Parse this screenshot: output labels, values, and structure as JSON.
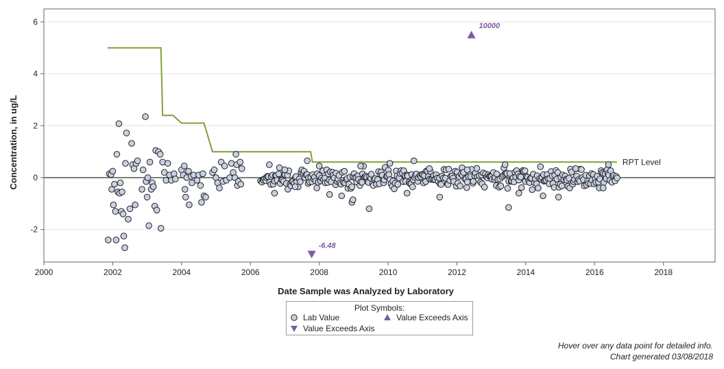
{
  "chart_data": {
    "type": "scatter",
    "title": "",
    "xlabel": "Date Sample was Analyzed by Laboratory",
    "ylabel": "Concentration, in ug/L",
    "xlim": [
      2000,
      2019.5
    ],
    "ylim": [
      -3.25,
      6.5
    ],
    "x_ticks": [
      2000,
      2002,
      2004,
      2006,
      2008,
      2010,
      2012,
      2014,
      2016,
      2018
    ],
    "y_ticks": [
      -2,
      0,
      2,
      4,
      6
    ],
    "grid": "horizontal",
    "reference_line_y": 0,
    "rpt_level": {
      "label": "RPT Level",
      "x": [
        2001.85,
        2003.4,
        2003.45,
        2003.75,
        2004.0,
        2004.65,
        2004.9,
        2007.75,
        2007.8,
        2016.65
      ],
      "y": [
        5.0,
        5.0,
        2.4,
        2.4,
        2.1,
        2.1,
        1.0,
        1.0,
        0.6,
        0.6
      ]
    },
    "exceeds_axis": [
      {
        "x": 2012.42,
        "y": 10000,
        "direction": "up",
        "label": "10000"
      },
      {
        "x": 2007.78,
        "y": -6.48,
        "direction": "down",
        "label": "-6.48"
      }
    ],
    "early_points": [
      [
        2001.87,
        -2.4
      ],
      [
        2001.9,
        0.15
      ],
      [
        2001.95,
        0.12
      ],
      [
        2001.97,
        -0.45
      ],
      [
        2002.0,
        0.25
      ],
      [
        2002.02,
        -1.05
      ],
      [
        2002.05,
        -0.25
      ],
      [
        2002.08,
        -1.3
      ],
      [
        2002.1,
        -2.4
      ],
      [
        2002.12,
        0.9
      ],
      [
        2002.15,
        -0.55
      ],
      [
        2002.18,
        2.08
      ],
      [
        2002.2,
        -0.6
      ],
      [
        2002.22,
        -0.2
      ],
      [
        2002.25,
        -1.3
      ],
      [
        2002.27,
        -0.55
      ],
      [
        2002.3,
        -1.4
      ],
      [
        2002.32,
        -2.25
      ],
      [
        2002.35,
        -2.7
      ],
      [
        2002.37,
        0.55
      ],
      [
        2002.4,
        1.72
      ],
      [
        2002.45,
        -1.6
      ],
      [
        2002.5,
        -1.2
      ],
      [
        2002.55,
        1.32
      ],
      [
        2002.58,
        0.5
      ],
      [
        2002.62,
        0.35
      ],
      [
        2002.65,
        -1.05
      ],
      [
        2002.68,
        0.55
      ],
      [
        2002.72,
        0.65
      ],
      [
        2002.85,
        -0.45
      ],
      [
        2002.88,
        0.3
      ],
      [
        2002.95,
        2.35
      ],
      [
        2002.97,
        -0.15
      ],
      [
        2003.0,
        -0.75
      ],
      [
        2003.02,
        0.0
      ],
      [
        2003.05,
        -1.85
      ],
      [
        2003.08,
        0.6
      ],
      [
        2003.12,
        -0.45
      ],
      [
        2003.15,
        -0.2
      ],
      [
        2003.18,
        -0.35
      ],
      [
        2003.22,
        -1.1
      ],
      [
        2003.25,
        1.05
      ],
      [
        2003.28,
        -1.25
      ],
      [
        2003.33,
        1.0
      ],
      [
        2003.38,
        0.9
      ],
      [
        2003.4,
        -1.95
      ],
      [
        2003.45,
        0.6
      ],
      [
        2003.5,
        0.2
      ],
      [
        2003.55,
        -0.1
      ],
      [
        2003.6,
        0.55
      ],
      [
        2003.65,
        0.1
      ],
      [
        2003.7,
        -0.1
      ],
      [
        2003.78,
        0.15
      ],
      [
        2003.82,
        -0.05
      ],
      [
        2004.0,
        0.3
      ],
      [
        2004.05,
        0.1
      ],
      [
        2004.08,
        0.45
      ],
      [
        2004.1,
        -0.45
      ],
      [
        2004.12,
        -0.75
      ],
      [
        2004.15,
        0.0
      ],
      [
        2004.2,
        0.25
      ],
      [
        2004.22,
        -1.05
      ],
      [
        2004.28,
        0.05
      ],
      [
        2004.3,
        -0.2
      ],
      [
        2004.35,
        0.1
      ],
      [
        2004.45,
        -0.1
      ],
      [
        2004.5,
        0.1
      ],
      [
        2004.55,
        -0.3
      ],
      [
        2004.58,
        -0.95
      ],
      [
        2004.62,
        0.15
      ],
      [
        2004.65,
        -0.7
      ],
      [
        2004.7,
        -0.75
      ],
      [
        2004.9,
        0.2
      ],
      [
        2004.95,
        0.3
      ],
      [
        2005.0,
        0.0
      ],
      [
        2005.05,
        -0.2
      ],
      [
        2005.1,
        -0.4
      ],
      [
        2005.15,
        0.6
      ],
      [
        2005.2,
        -0.15
      ],
      [
        2005.25,
        0.45
      ],
      [
        2005.3,
        -0.1
      ],
      [
        2005.4,
        0.0
      ],
      [
        2005.45,
        0.55
      ],
      [
        2005.5,
        0.2
      ],
      [
        2005.55,
        0.0
      ],
      [
        2005.58,
        0.9
      ],
      [
        2005.6,
        0.5
      ],
      [
        2005.62,
        -0.3
      ],
      [
        2005.65,
        -0.15
      ],
      [
        2005.7,
        0.6
      ],
      [
        2005.72,
        -0.25
      ],
      [
        2005.75,
        0.35
      ]
    ],
    "dense_series": {
      "x_start": 2006.3,
      "x_end": 2016.65,
      "step": 0.0285,
      "ymin": -0.55,
      "ymax": 0.55
    },
    "outliers": [
      [
        2006.55,
        0.5
      ],
      [
        2006.7,
        -0.6
      ],
      [
        2007.0,
        0.3
      ],
      [
        2007.3,
        -0.35
      ],
      [
        2007.65,
        0.65
      ],
      [
        2008.0,
        0.45
      ],
      [
        2008.3,
        -0.65
      ],
      [
        2008.65,
        -0.7
      ],
      [
        2008.95,
        -0.95
      ],
      [
        2008.98,
        -0.85
      ],
      [
        2009.2,
        0.45
      ],
      [
        2009.45,
        -1.2
      ],
      [
        2010.05,
        0.55
      ],
      [
        2010.55,
        -0.6
      ],
      [
        2010.75,
        0.65
      ],
      [
        2011.2,
        0.35
      ],
      [
        2011.5,
        -0.75
      ],
      [
        2012.3,
        0.3
      ],
      [
        2013.4,
        0.5
      ],
      [
        2013.5,
        -1.15
      ],
      [
        2013.8,
        -0.6
      ],
      [
        2014.5,
        -0.7
      ],
      [
        2014.95,
        -0.75
      ],
      [
        2015.45,
        0.35
      ],
      [
        2016.25,
        -0.4
      ],
      [
        2016.4,
        0.5
      ]
    ]
  },
  "rpt_label": "RPT Level",
  "legend": {
    "title": "Plot Symbols:",
    "lab_value": "Lab Value",
    "exceeds_up": "Value Exceeds Axis",
    "exceeds_down": "Value Exceeds Axis"
  },
  "footer": {
    "line1": "Hover over any data point for detailed info.",
    "line2": "Chart generated 03/08/2018"
  },
  "colors": {
    "marker_fill": "#c8d1e3",
    "marker_stroke": "#222222",
    "rpt_line": "#7ea03a",
    "exceeds": "#7a5ca0",
    "axis": "#666666",
    "grid": "#e4e4e4"
  }
}
